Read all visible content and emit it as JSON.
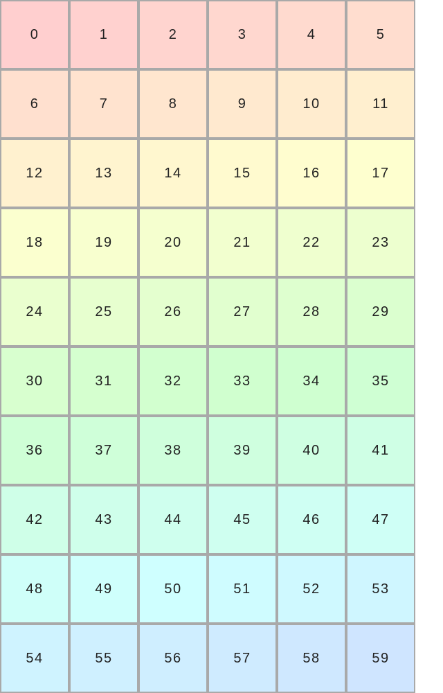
{
  "grid": {
    "columns": 6,
    "cells": [
      "0",
      "1",
      "2",
      "3",
      "4",
      "5",
      "6",
      "7",
      "8",
      "9",
      "10",
      "11",
      "12",
      "13",
      "14",
      "15",
      "16",
      "17",
      "18",
      "19",
      "20",
      "21",
      "22",
      "23",
      "24",
      "25",
      "26",
      "27",
      "28",
      "29",
      "30",
      "31",
      "32",
      "33",
      "34",
      "35",
      "36",
      "37",
      "38",
      "39",
      "40",
      "41",
      "42",
      "43",
      "44",
      "45",
      "46",
      "47",
      "48",
      "49",
      "50",
      "51",
      "52",
      "53",
      "54",
      "55",
      "56",
      "57",
      "58",
      "59"
    ],
    "border_color": "#a9a9a9",
    "first_cell_color": "#ffd0d0",
    "last_cell_color": "#d0e0ff"
  }
}
